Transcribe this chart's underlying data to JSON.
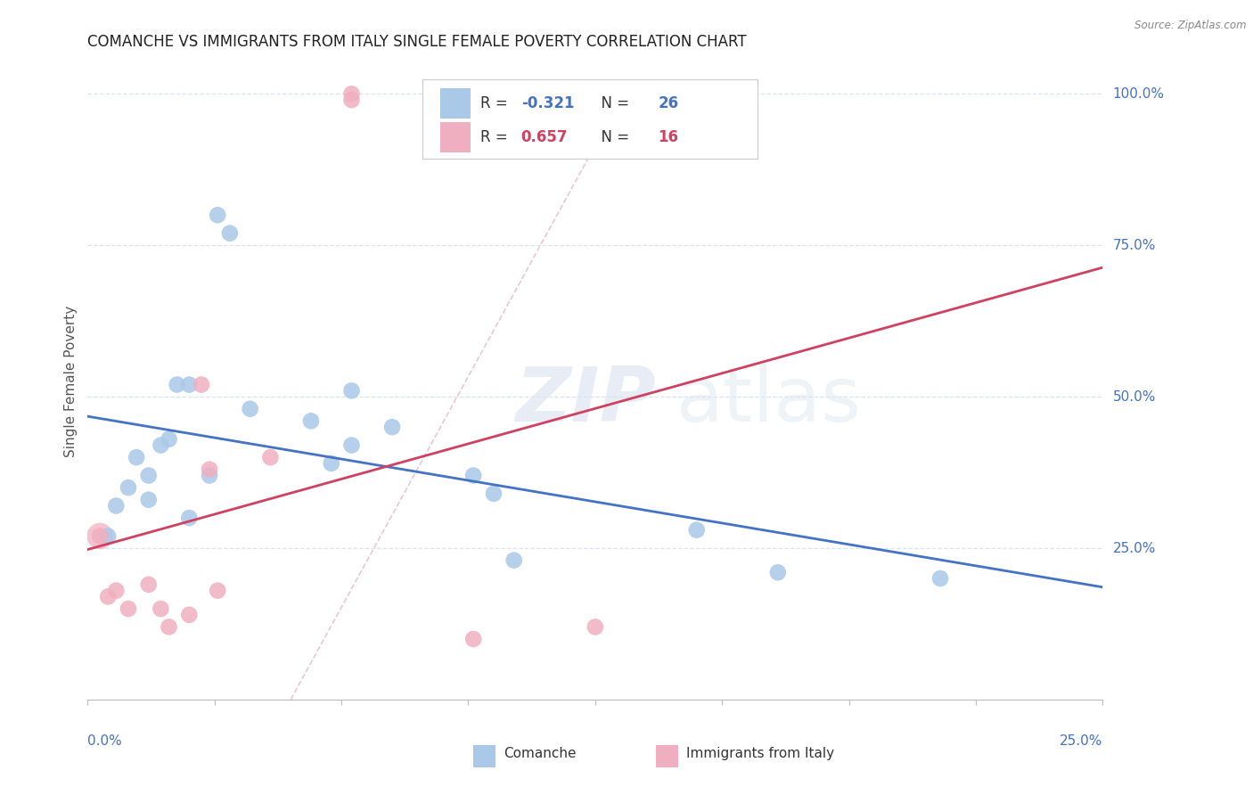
{
  "title": "COMANCHE VS IMMIGRANTS FROM ITALY SINGLE FEMALE POVERTY CORRELATION CHART",
  "source": "Source: ZipAtlas.com",
  "ylabel": "Single Female Poverty",
  "xlim": [
    0.0,
    25.0
  ],
  "ylim": [
    0.0,
    105.0
  ],
  "comanche_R": -0.321,
  "comanche_N": 26,
  "italy_R": 0.657,
  "italy_N": 16,
  "comanche_color": "#aac8e8",
  "italy_color": "#f0afc0",
  "comanche_line_color": "#4472c4",
  "italy_line_color": "#d04060",
  "legend_label_comanche": "Comanche",
  "legend_label_italy": "Immigrants from Italy",
  "watermark_zip": "ZIP",
  "watermark_atlas": "atlas",
  "comanche_x": [
    0.5,
    0.7,
    1.0,
    1.2,
    1.5,
    1.5,
    1.8,
    2.0,
    2.2,
    2.5,
    2.5,
    3.0,
    3.2,
    3.5,
    4.0,
    5.5,
    6.0,
    6.5,
    6.5,
    7.5,
    9.5,
    10.0,
    10.5,
    15.0,
    17.0,
    21.0
  ],
  "comanche_y": [
    27,
    32,
    35,
    40,
    33,
    37,
    42,
    43,
    52,
    52,
    30,
    37,
    80,
    77,
    48,
    46,
    39,
    51,
    42,
    45,
    37,
    34,
    23,
    28,
    21,
    20
  ],
  "italy_x": [
    0.3,
    0.5,
    0.7,
    1.0,
    1.5,
    1.8,
    2.0,
    2.5,
    2.8,
    3.0,
    3.2,
    4.5,
    6.5,
    6.5,
    9.5,
    12.5
  ],
  "italy_y": [
    27,
    17,
    18,
    15,
    19,
    15,
    12,
    14,
    52,
    38,
    18,
    40,
    99,
    100,
    10,
    12
  ],
  "ytick_vals": [
    0,
    25,
    50,
    75,
    100
  ],
  "ytick_labels": [
    "",
    "25.0%",
    "50.0%",
    "75.0%",
    "100.0%"
  ],
  "xtick_count": 9,
  "background_color": "#ffffff",
  "grid_color": "#d8e4f0",
  "title_fontsize": 12,
  "axis_label_color": "#4472c4",
  "source_color": "#888888",
  "marker_size": 180,
  "big_marker_size": 450,
  "big_marker_x": 0.3,
  "big_marker_y": 27
}
